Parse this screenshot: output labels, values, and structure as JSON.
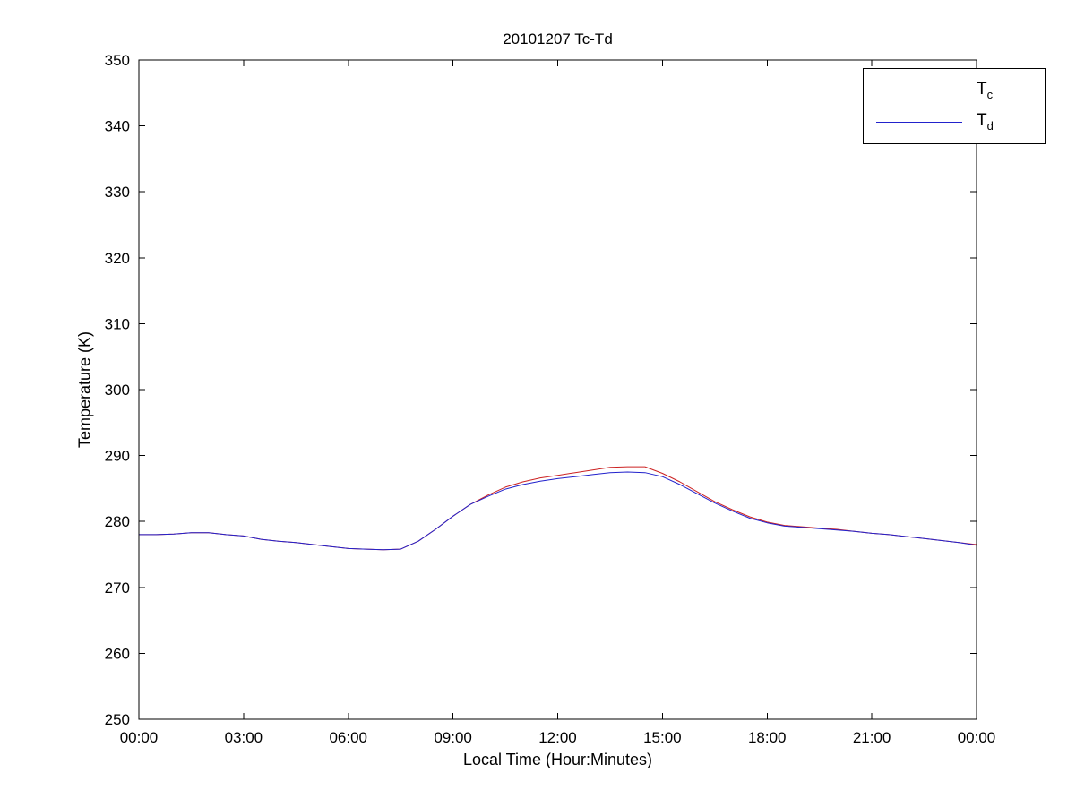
{
  "chart_data": {
    "type": "line",
    "title": "20101207 Tc-Td",
    "xlabel": "Local Time (Hour:Minutes)",
    "ylabel": "Temperature (K)",
    "xlim": [
      0,
      24
    ],
    "ylim": [
      250,
      350
    ],
    "grid": false,
    "legend_position": "top-right",
    "x_tick_hours": [
      0,
      3,
      6,
      9,
      12,
      15,
      18,
      21,
      24
    ],
    "x_ticks": [
      "00:00",
      "03:00",
      "06:00",
      "09:00",
      "12:00",
      "15:00",
      "18:00",
      "21:00",
      "00:00"
    ],
    "y_ticks": [
      250,
      260,
      270,
      280,
      290,
      300,
      310,
      320,
      330,
      340,
      350
    ],
    "x_hours": [
      0,
      0.5,
      1,
      1.5,
      2,
      2.5,
      3,
      3.5,
      4,
      4.5,
      5,
      5.5,
      6,
      6.5,
      7,
      7.5,
      8,
      8.5,
      9,
      9.5,
      10,
      10.5,
      11,
      11.5,
      12,
      12.5,
      13,
      13.5,
      14,
      14.5,
      15,
      15.5,
      16,
      16.5,
      17,
      17.5,
      18,
      18.5,
      19,
      19.5,
      20,
      20.5,
      21,
      21.5,
      22,
      22.5,
      23,
      23.5,
      24
    ],
    "series": [
      {
        "name": "Tc",
        "color": "#cc2222",
        "values": [
          278.0,
          278.0,
          278.1,
          278.3,
          278.3,
          278.0,
          277.8,
          277.3,
          277.0,
          276.8,
          276.5,
          276.2,
          275.9,
          275.8,
          275.7,
          275.8,
          277.0,
          278.8,
          280.8,
          282.6,
          284.0,
          285.2,
          286.0,
          286.6,
          287.0,
          287.4,
          287.8,
          288.2,
          288.3,
          288.3,
          287.3,
          286.0,
          284.5,
          283.0,
          281.8,
          280.7,
          279.9,
          279.4,
          279.2,
          279.0,
          278.8,
          278.5,
          278.2,
          278.0,
          277.7,
          277.4,
          277.1,
          276.8,
          276.5
        ]
      },
      {
        "name": "Td",
        "color": "#2222cc",
        "values": [
          278.0,
          278.0,
          278.1,
          278.3,
          278.3,
          278.0,
          277.8,
          277.3,
          277.0,
          276.8,
          276.5,
          276.2,
          275.9,
          275.8,
          275.7,
          275.8,
          277.0,
          278.8,
          280.8,
          282.6,
          283.8,
          284.9,
          285.6,
          286.1,
          286.5,
          286.8,
          287.1,
          287.4,
          287.5,
          287.4,
          286.8,
          285.6,
          284.2,
          282.8,
          281.6,
          280.5,
          279.8,
          279.3,
          279.1,
          278.9,
          278.7,
          278.5,
          278.2,
          278.0,
          277.7,
          277.4,
          277.1,
          276.8,
          276.4
        ]
      }
    ],
    "legend": [
      {
        "base": "T",
        "sub": "c"
      },
      {
        "base": "T",
        "sub": "d"
      }
    ]
  }
}
